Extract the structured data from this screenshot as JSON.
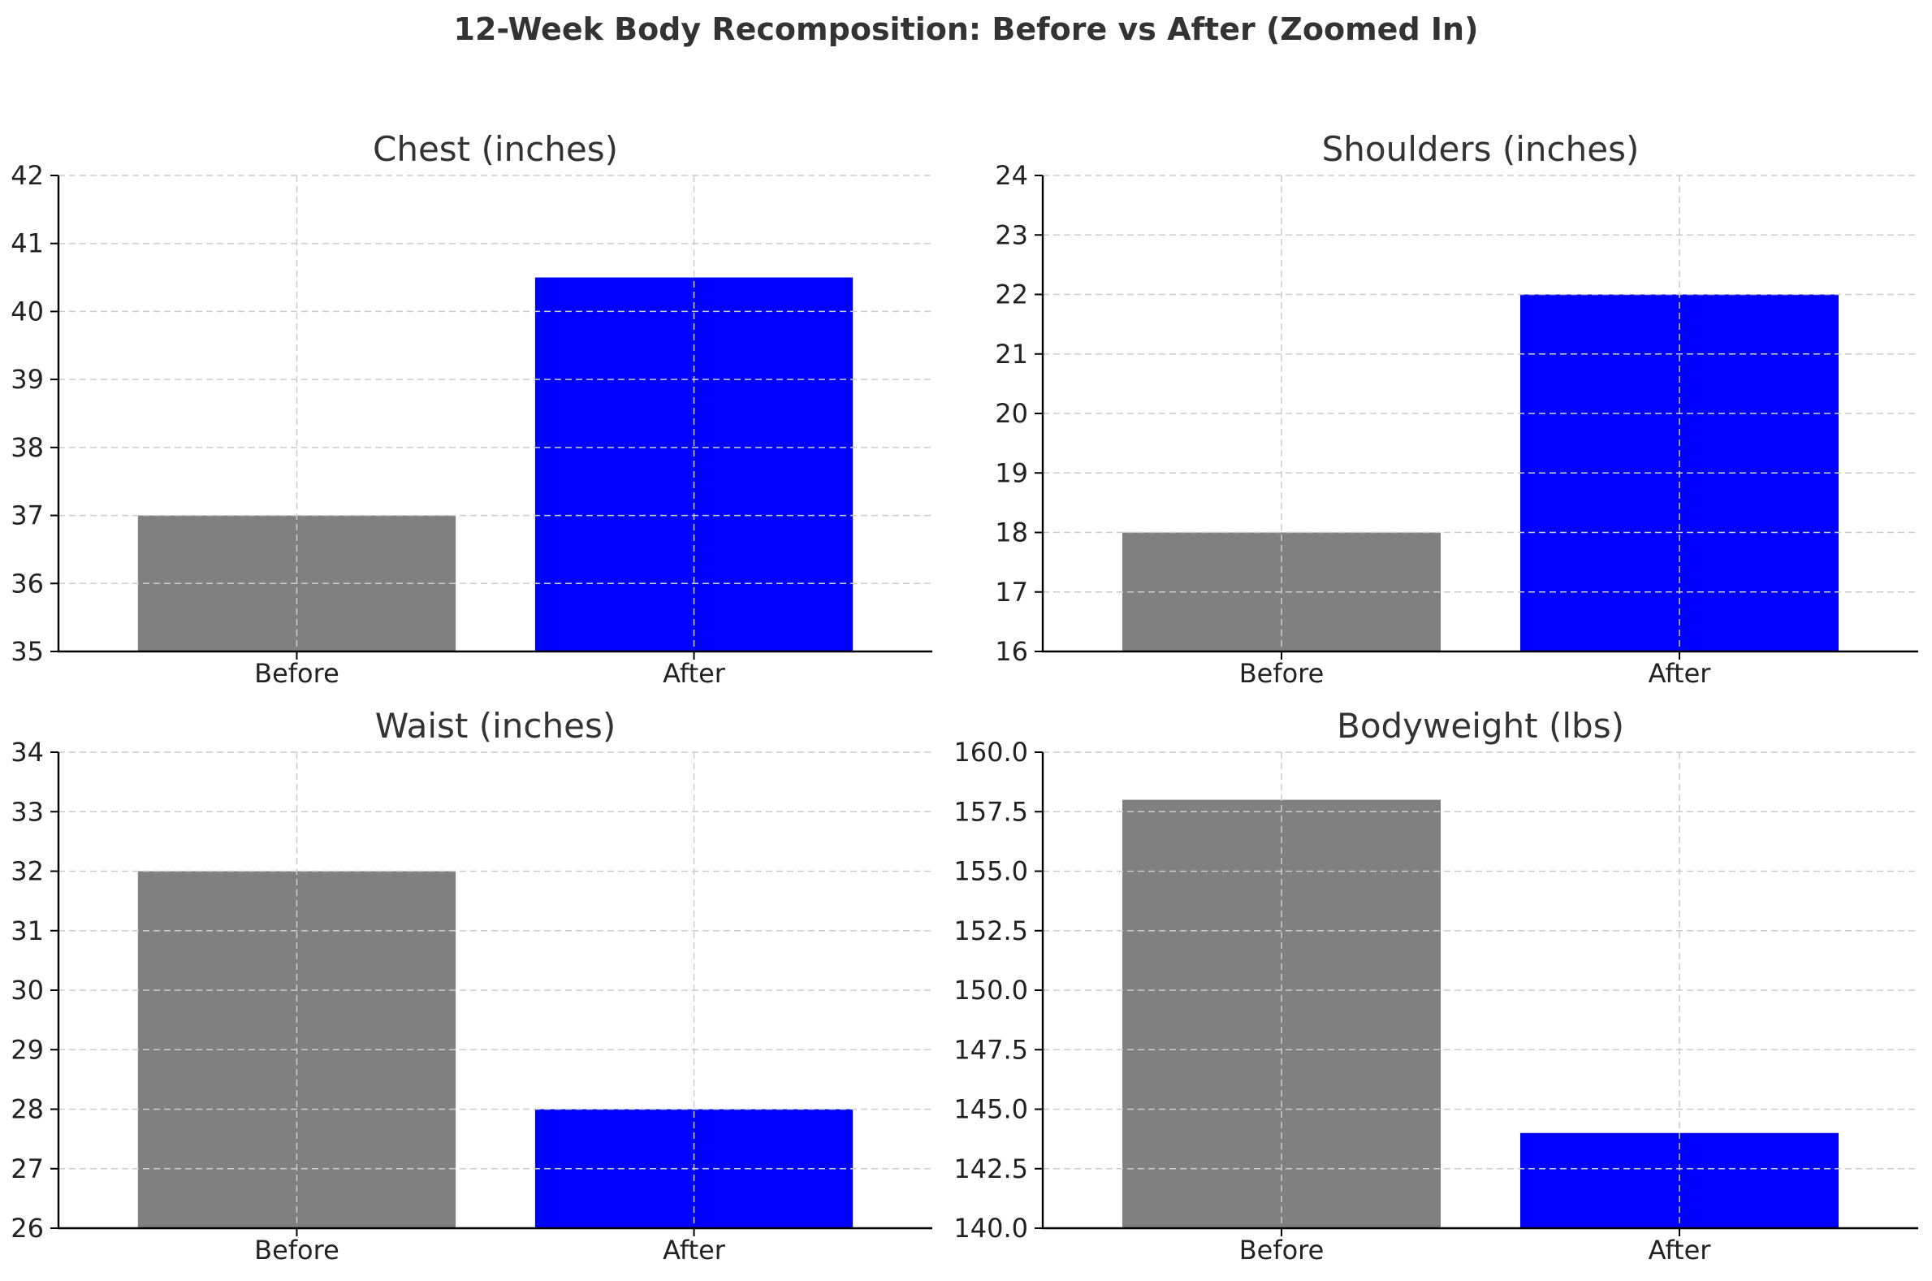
{
  "suptitle": "12-Week Body Recomposition: Before vs After (Zoomed In)",
  "colors": {
    "before": "#808080",
    "after": "#0000ff"
  },
  "chart_data": [
    {
      "type": "bar",
      "title": "Chest (inches)",
      "categories": [
        "Before",
        "After"
      ],
      "values": [
        37,
        40.5
      ],
      "ylim": [
        35,
        42
      ],
      "yticks": [
        "35",
        "36",
        "37",
        "38",
        "39",
        "40",
        "41",
        "42"
      ],
      "grid": true
    },
    {
      "type": "bar",
      "title": "Shoulders (inches)",
      "categories": [
        "Before",
        "After"
      ],
      "values": [
        18,
        22
      ],
      "ylim": [
        16,
        24
      ],
      "yticks": [
        "16",
        "17",
        "18",
        "19",
        "20",
        "21",
        "22",
        "23",
        "24"
      ],
      "grid": true
    },
    {
      "type": "bar",
      "title": "Waist (inches)",
      "categories": [
        "Before",
        "After"
      ],
      "values": [
        32,
        28
      ],
      "ylim": [
        26,
        34
      ],
      "yticks": [
        "26",
        "27",
        "28",
        "29",
        "30",
        "31",
        "32",
        "33",
        "34"
      ],
      "grid": true
    },
    {
      "type": "bar",
      "title": "Bodyweight (lbs)",
      "categories": [
        "Before",
        "After"
      ],
      "values": [
        158,
        144
      ],
      "ylim": [
        140,
        160
      ],
      "yticks": [
        "140.0",
        "142.5",
        "145.0",
        "147.5",
        "150.0",
        "152.5",
        "155.0",
        "157.5",
        "160.0"
      ],
      "grid": true
    }
  ]
}
